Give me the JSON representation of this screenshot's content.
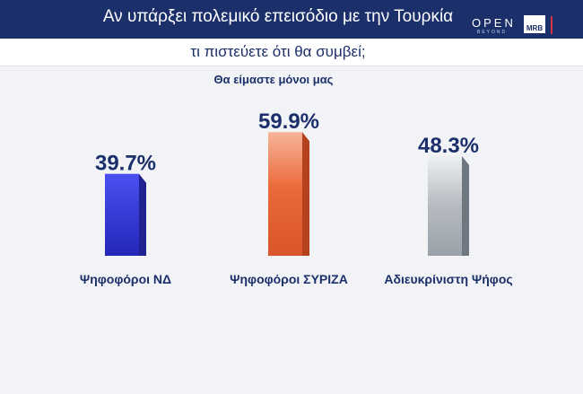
{
  "header": {
    "title_line1": "Αν υπάρξει πολεμικό επεισόδιο με την Τουρκία",
    "title_line2": "τι πιστεύετε ότι θα συμβεί;",
    "brand": "OPEN",
    "brand_sub": "BEYOND",
    "badge": "MRB"
  },
  "colors": {
    "header_bg": "#1b2f6b",
    "bar_nd": "#3437d6",
    "bar_syriza": "#e8612f",
    "bar_undecided": "#9da4ac"
  },
  "chart_data": {
    "type": "bar",
    "title": "Θα είμαστε μόνοι μας",
    "categories": [
      "Ψηφοφόροι ΝΔ",
      "Ψηφοφόροι ΣΥΡΙΖΑ",
      "Αδιευκρίνιστη Ψήφος"
    ],
    "values": [
      39.7,
      59.9,
      48.3
    ],
    "value_labels": [
      "39.7%",
      "59.9%",
      "48.3%"
    ],
    "unit": "%",
    "ylim": [
      0,
      100
    ],
    "grid": false,
    "legend": "none"
  }
}
